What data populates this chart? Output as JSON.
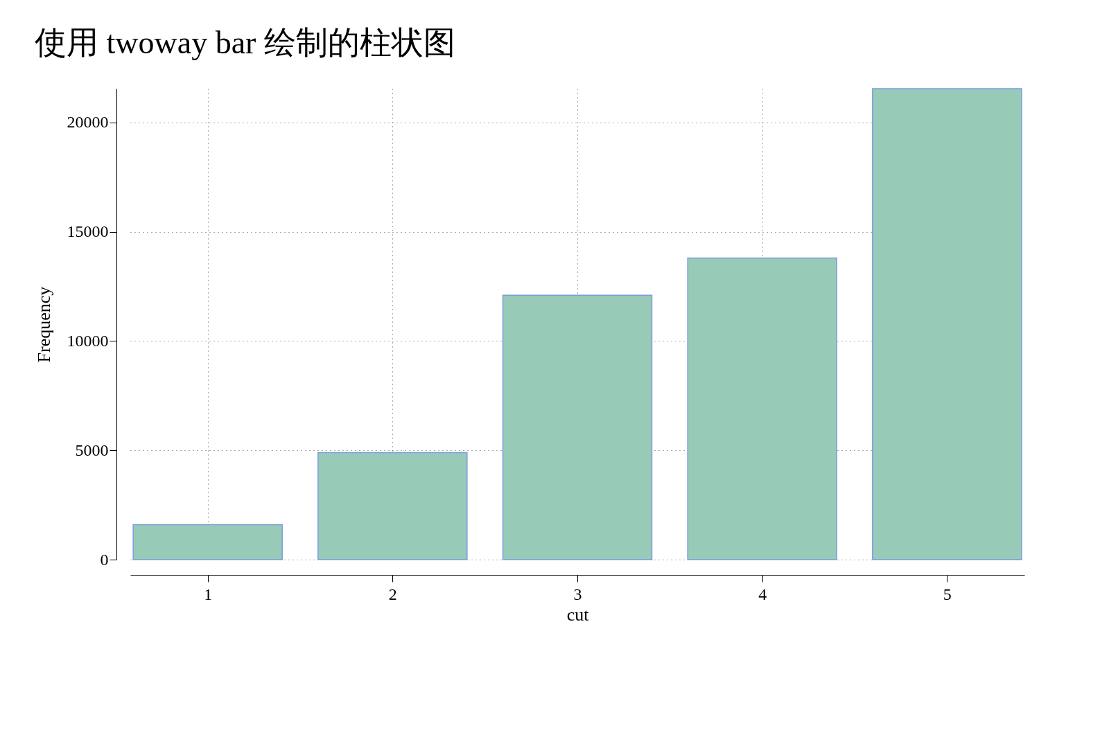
{
  "chart_data": {
    "type": "bar",
    "title": "使用 twoway bar 绘制的柱状图",
    "xlabel": "cut",
    "ylabel": "Frequency",
    "x": [
      1,
      2,
      3,
      4,
      5
    ],
    "series": [
      {
        "color": "#98cbb7",
        "values": [
          1600,
          4900,
          12100,
          13800,
          21550
        ]
      }
    ],
    "xlim": [
      0.6,
      5.4
    ],
    "xticks": [
      1,
      2,
      3,
      4,
      5
    ],
    "ylim": [
      0,
      21550
    ],
    "yticks": [
      0,
      5000,
      10000,
      15000,
      20000
    ],
    "grid": true,
    "line_style": "dotted"
  }
}
